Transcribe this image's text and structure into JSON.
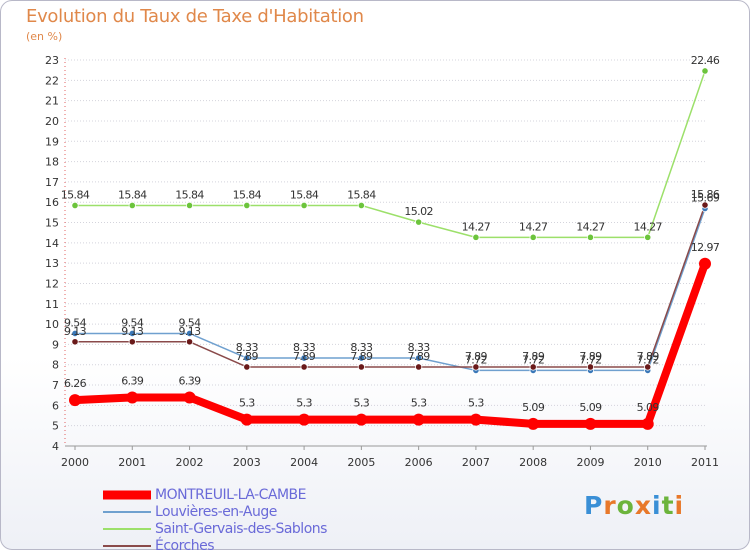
{
  "header": {
    "title": "Evolution du Taux de Taxe d'Habitation",
    "unit": "(en %)"
  },
  "logo": {
    "letters": [
      "P",
      "r",
      "o",
      "x",
      "i",
      "t",
      "i"
    ],
    "colors": [
      "#3a8fd6",
      "#e8782a",
      "#6cb43c",
      "#e8782a",
      "#3a8fd6",
      "#6cb43c",
      "#e8782a"
    ]
  },
  "chart_data": {
    "type": "line",
    "title": "Evolution du Taux de Taxe d'Habitation",
    "ylabel": "(en %)",
    "xlabel": "",
    "categories": [
      "2000",
      "2001",
      "2002",
      "2003",
      "2004",
      "2005",
      "2006",
      "2007",
      "2008",
      "2009",
      "2010",
      "2011"
    ],
    "yticks": [
      "4",
      "5",
      "6",
      "7",
      "8",
      "9",
      "10",
      "11",
      "12",
      "13",
      "14",
      "15",
      "16",
      "17",
      "18",
      "19",
      "20",
      "21",
      "22",
      "23"
    ],
    "ylim": [
      4,
      23
    ],
    "grid": "horizontal dotted",
    "legend_position": "bottom-left",
    "series": [
      {
        "name": "MONTREUIL-LA-CAMBE",
        "color": "#ff0000",
        "emphasis": true,
        "values": [
          6.26,
          6.39,
          6.39,
          5.3,
          5.3,
          5.3,
          5.3,
          5.3,
          5.09,
          5.09,
          5.09,
          12.97
        ],
        "labels": [
          "6.26",
          "6.39",
          "6.39",
          "5.3",
          "5.3",
          "5.3",
          "5.3",
          "5.3",
          "5.09",
          "5.09",
          "5.09",
          "12.97"
        ]
      },
      {
        "name": "Louvières-en-Auge",
        "color": "#6fa0cf",
        "marker_color": "#3a78b8",
        "values": [
          9.54,
          9.54,
          9.54,
          8.33,
          8.33,
          8.33,
          8.33,
          7.72,
          7.72,
          7.72,
          7.72,
          15.69
        ],
        "labels": [
          "9.54",
          "9.54",
          "9.54",
          "8.33",
          "8.33",
          "8.33",
          "8.33",
          "7.72",
          "7.72",
          "7.72",
          "7.72",
          "15.69"
        ]
      },
      {
        "name": "Saint-Gervais-des-Sablons",
        "color": "#9ce06a",
        "marker_color": "#6cc43c",
        "values": [
          15.84,
          15.84,
          15.84,
          15.84,
          15.84,
          15.84,
          15.02,
          14.27,
          14.27,
          14.27,
          14.27,
          22.46
        ],
        "labels": [
          "15.84",
          "15.84",
          "15.84",
          "15.84",
          "15.84",
          "15.84",
          "15.02",
          "14.27",
          "14.27",
          "14.27",
          "14.27",
          "22.46"
        ]
      },
      {
        "name": "Écorches",
        "color": "#8a4a4a",
        "marker_color": "#6a1a1a",
        "values": [
          9.13,
          9.13,
          9.13,
          7.89,
          7.89,
          7.89,
          7.89,
          7.89,
          7.89,
          7.89,
          7.89,
          15.86
        ],
        "labels": [
          "9.13",
          "9.13",
          "9.13",
          "7.89",
          "7.89",
          "7.89",
          "7.89",
          "7.89",
          "7.89",
          "7.89",
          "7.89",
          "15.86"
        ]
      }
    ]
  }
}
